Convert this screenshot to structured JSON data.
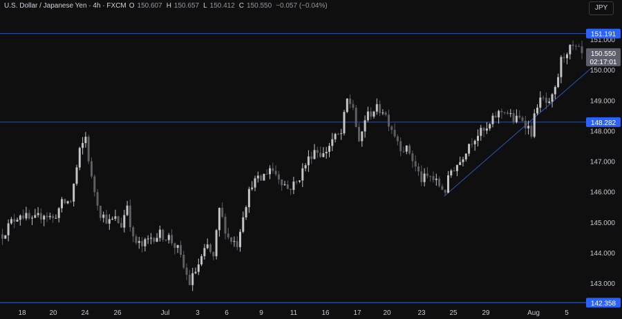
{
  "header": {
    "symbol": "U.S. Dollar / Japanese Yen · 4h · FXCM",
    "open_label": "O",
    "open": "150.607",
    "high_label": "H",
    "high": "150.657",
    "low_label": "L",
    "low": "150.412",
    "close_label": "C",
    "close": "150.550",
    "change": "−0.057 (−0.04%)"
  },
  "currency_button": "JPY",
  "colors": {
    "background": "#0f0f10",
    "up_candle": "#c4c4c6",
    "down_candle": "#5e5f63",
    "level_line": "#2f55b4",
    "badge_blue": "#2962ff",
    "badge_gray": "#5d606b"
  },
  "chart_data": {
    "type": "candlestick",
    "y_axis": {
      "range": [
        142.6,
        151.6
      ],
      "ticks": [
        "151.000",
        "150.000",
        "149.000",
        "148.000",
        "147.000",
        "146.000",
        "145.000",
        "144.000",
        "143.000"
      ]
    },
    "x_axis": {
      "ticks": [
        "18",
        "20",
        "24",
        "26",
        "Jul",
        "3",
        "6",
        "9",
        "11",
        "16",
        "17",
        "20",
        "23",
        "25",
        "29",
        "Aug",
        "5"
      ]
    },
    "horizontal_levels": [
      {
        "value": 151.191,
        "label": "151.191"
      },
      {
        "value": 148.282,
        "label": "148.282"
      },
      {
        "value": 142.358,
        "label": "142.358"
      }
    ],
    "trendline": {
      "start": {
        "bar": 149,
        "price": 145.85
      },
      "end": {
        "bar": 199,
        "price": 150.1
      }
    },
    "price_badge": {
      "value": 150.55,
      "label": "150.550",
      "countdown": "02:17:01"
    },
    "path_points": [
      [
        0,
        144.6
      ],
      [
        3,
        145.0
      ],
      [
        6,
        145.3
      ],
      [
        10,
        145.0
      ],
      [
        14,
        145.3
      ],
      [
        17,
        145.1
      ],
      [
        20,
        145.6
      ],
      [
        23,
        145.7
      ],
      [
        26,
        147.3
      ],
      [
        28,
        147.8
      ],
      [
        30,
        146.4
      ],
      [
        33,
        145.3
      ],
      [
        36,
        145.0
      ],
      [
        38,
        145.1
      ],
      [
        40,
        144.9
      ],
      [
        42,
        145.6
      ],
      [
        44,
        144.4
      ],
      [
        47,
        144.2
      ],
      [
        50,
        144.5
      ],
      [
        53,
        144.6
      ],
      [
        56,
        144.5
      ],
      [
        59,
        144.1
      ],
      [
        61,
        143.5
      ],
      [
        63,
        143.0
      ],
      [
        66,
        143.6
      ],
      [
        69,
        144.2
      ],
      [
        71,
        143.8
      ],
      [
        73,
        145.4
      ],
      [
        76,
        144.5
      ],
      [
        79,
        144.3
      ],
      [
        81,
        145.3
      ],
      [
        84,
        146.3
      ],
      [
        87,
        146.4
      ],
      [
        90,
        146.8
      ],
      [
        93,
        146.5
      ],
      [
        96,
        146.1
      ],
      [
        99,
        146.3
      ],
      [
        102,
        146.9
      ],
      [
        105,
        147.4
      ],
      [
        108,
        147.2
      ],
      [
        111,
        147.7
      ],
      [
        114,
        147.9
      ],
      [
        116,
        149.0
      ],
      [
        118,
        148.8
      ],
      [
        120,
        147.5
      ],
      [
        122,
        148.4
      ],
      [
        125,
        148.7
      ],
      [
        128,
        148.7
      ],
      [
        131,
        148.1
      ],
      [
        134,
        147.5
      ],
      [
        137,
        147.3
      ],
      [
        139,
        146.8
      ],
      [
        141,
        146.4
      ],
      [
        144,
        146.5
      ],
      [
        147,
        146.2
      ],
      [
        149,
        146.05
      ],
      [
        151,
        146.7
      ],
      [
        154,
        147.0
      ],
      [
        157,
        147.6
      ],
      [
        160,
        147.9
      ],
      [
        163,
        148.0
      ],
      [
        166,
        148.5
      ],
      [
        169,
        148.7
      ],
      [
        172,
        148.35
      ],
      [
        175,
        148.4
      ],
      [
        178,
        147.95
      ],
      [
        180,
        148.9
      ],
      [
        182,
        149.0
      ],
      [
        184,
        148.8
      ],
      [
        186,
        149.3
      ],
      [
        188,
        150.3
      ],
      [
        190,
        150.65
      ],
      [
        192,
        150.7
      ],
      [
        194,
        150.6
      ],
      [
        195,
        150.55
      ]
    ]
  }
}
